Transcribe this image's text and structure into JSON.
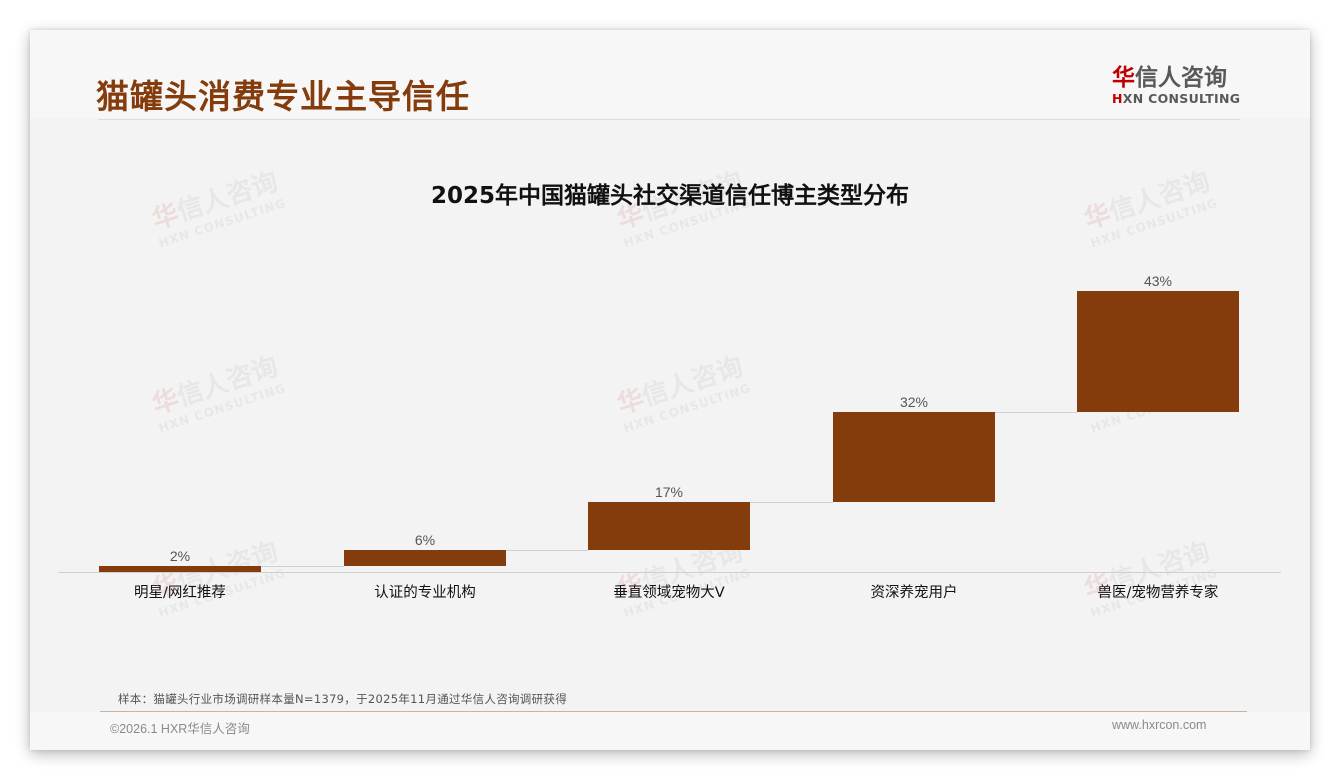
{
  "header": {
    "title": "猫罐头消费专业主导信任",
    "logo": {
      "cn_accent": "华",
      "cn_rest": "信人咨询",
      "en_accent": "H",
      "en_rest": "XN CONSULTING"
    }
  },
  "watermark": {
    "cn_accent": "华",
    "cn_rest": "信人咨询",
    "en": "HXN CONSULTING"
  },
  "colors": {
    "bar": "#843c0c",
    "title": "#843c0c",
    "logo_accent": "#c00000"
  },
  "chart_data": {
    "type": "bar",
    "subtype": "waterfall-stacked-floating",
    "title": "2025年中国猫罐头社交渠道信任博主类型分布",
    "categories": [
      "明星/网红推荐",
      "认证的专业机构",
      "垂直领域宠物大V",
      "资深养宠用户",
      "兽医/宠物营养专家"
    ],
    "values": [
      2,
      6,
      17,
      32,
      43
    ],
    "value_labels": [
      "2%",
      "6%",
      "17%",
      "32%",
      "43%"
    ],
    "unit": "%",
    "xlabel": "",
    "ylabel": "",
    "ylim": [
      0,
      100
    ],
    "grid": false,
    "legend": "none",
    "bar_color": "#843c0c"
  },
  "footer": {
    "note": "样本：猫罐头行业市场调研样本量N=1379，于2025年11月通过华信人咨询调研获得",
    "copyright": "©2026.1 HXR华信人咨询",
    "website": "www.hxrcon.com"
  }
}
